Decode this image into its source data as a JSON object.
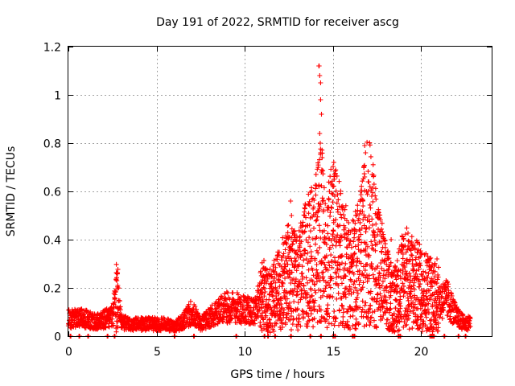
{
  "chart_data": {
    "type": "scatter",
    "title": "Day 191 of 2022, SRMTID for receiver ascg",
    "xlabel": "GPS time / hours",
    "ylabel": "SRMTID / TECUs",
    "xlim": [
      0,
      24
    ],
    "ylim": [
      0,
      1.2
    ],
    "xticks": [
      0,
      5,
      10,
      15,
      20
    ],
    "xtick_labels": [
      "0",
      "5",
      "10",
      "15",
      "20"
    ],
    "yticks": [
      0,
      0.2,
      0.4,
      0.6,
      0.8,
      1.0,
      1.2
    ],
    "ytick_labels": [
      "0",
      "0.2",
      "0.4",
      "0.6",
      "0.8",
      "1",
      "1.2"
    ],
    "grid": true,
    "marker": "+",
    "color": "#ff0000",
    "envelope": [
      {
        "x": 0.0,
        "y": 0.07
      },
      {
        "x": 0.5,
        "y": 0.08
      },
      {
        "x": 1.0,
        "y": 0.07
      },
      {
        "x": 1.5,
        "y": 0.06
      },
      {
        "x": 2.0,
        "y": 0.07
      },
      {
        "x": 2.5,
        "y": 0.08
      },
      {
        "x": 2.75,
        "y": 0.18
      },
      {
        "x": 3.0,
        "y": 0.06
      },
      {
        "x": 3.5,
        "y": 0.05
      },
      {
        "x": 4.0,
        "y": 0.05
      },
      {
        "x": 4.5,
        "y": 0.05
      },
      {
        "x": 5.0,
        "y": 0.05
      },
      {
        "x": 5.5,
        "y": 0.05
      },
      {
        "x": 6.0,
        "y": 0.04
      },
      {
        "x": 6.5,
        "y": 0.06
      },
      {
        "x": 7.0,
        "y": 0.1
      },
      {
        "x": 7.5,
        "y": 0.05
      },
      {
        "x": 8.0,
        "y": 0.08
      },
      {
        "x": 8.5,
        "y": 0.1
      },
      {
        "x": 9.0,
        "y": 0.12
      },
      {
        "x": 9.5,
        "y": 0.12
      },
      {
        "x": 10.0,
        "y": 0.11
      },
      {
        "x": 10.5,
        "y": 0.1
      },
      {
        "x": 11.0,
        "y": 0.17
      },
      {
        "x": 11.5,
        "y": 0.15
      },
      {
        "x": 12.0,
        "y": 0.2
      },
      {
        "x": 12.5,
        "y": 0.25
      },
      {
        "x": 13.0,
        "y": 0.22
      },
      {
        "x": 13.5,
        "y": 0.3
      },
      {
        "x": 14.0,
        "y": 0.35
      },
      {
        "x": 14.3,
        "y": 0.45
      },
      {
        "x": 14.6,
        "y": 0.3
      },
      {
        "x": 15.0,
        "y": 0.4
      },
      {
        "x": 15.5,
        "y": 0.32
      },
      {
        "x": 16.0,
        "y": 0.25
      },
      {
        "x": 16.5,
        "y": 0.3
      },
      {
        "x": 17.0,
        "y": 0.45
      },
      {
        "x": 17.5,
        "y": 0.32
      },
      {
        "x": 18.0,
        "y": 0.2
      },
      {
        "x": 18.5,
        "y": 0.15
      },
      {
        "x": 19.0,
        "y": 0.25
      },
      {
        "x": 19.5,
        "y": 0.22
      },
      {
        "x": 20.0,
        "y": 0.2
      },
      {
        "x": 20.5,
        "y": 0.18
      },
      {
        "x": 21.0,
        "y": 0.15
      },
      {
        "x": 21.5,
        "y": 0.15
      },
      {
        "x": 22.0,
        "y": 0.08
      },
      {
        "x": 22.5,
        "y": 0.05
      },
      {
        "x": 22.8,
        "y": 0.06
      }
    ],
    "spikes": [
      {
        "x": 12.6,
        "y": 0.56
      },
      {
        "x": 12.65,
        "y": 0.5
      },
      {
        "x": 14.2,
        "y": 1.12
      },
      {
        "x": 14.25,
        "y": 1.08
      },
      {
        "x": 14.3,
        "y": 1.05
      },
      {
        "x": 14.3,
        "y": 0.98
      },
      {
        "x": 14.35,
        "y": 0.92
      },
      {
        "x": 14.25,
        "y": 0.84
      },
      {
        "x": 14.3,
        "y": 0.76
      },
      {
        "x": 14.35,
        "y": 0.68
      },
      {
        "x": 14.2,
        "y": 0.62
      },
      {
        "x": 14.4,
        "y": 0.56
      },
      {
        "x": 14.28,
        "y": 0.8
      },
      {
        "x": 14.22,
        "y": 1.12
      },
      {
        "x": 15.0,
        "y": 0.62
      },
      {
        "x": 15.1,
        "y": 0.58
      },
      {
        "x": 14.8,
        "y": 0.6
      },
      {
        "x": 16.8,
        "y": 0.79
      },
      {
        "x": 16.85,
        "y": 0.76
      },
      {
        "x": 16.75,
        "y": 0.7
      },
      {
        "x": 16.8,
        "y": 0.66
      },
      {
        "x": 17.0,
        "y": 0.64
      },
      {
        "x": 17.1,
        "y": 0.62
      },
      {
        "x": 16.9,
        "y": 0.6
      },
      {
        "x": 17.2,
        "y": 0.58
      },
      {
        "x": 16.7,
        "y": 0.56
      },
      {
        "x": 19.0,
        "y": 0.4
      },
      {
        "x": 18.3,
        "y": 0.4
      },
      {
        "x": 20.0,
        "y": 0.34
      },
      {
        "x": 20.9,
        "y": 0.32
      },
      {
        "x": 2.75,
        "y": 0.23
      },
      {
        "x": 2.8,
        "y": 0.21
      }
    ],
    "zero_markers": [
      0.1,
      0.6,
      1.1,
      2.2,
      2.6,
      6.0,
      7.1,
      9.5,
      11.1,
      11.3,
      11.7,
      12.6,
      13.7,
      14.3,
      15.0,
      15.1,
      16.1,
      16.2,
      18.7,
      18.8,
      20.5,
      20.6,
      20.7,
      21.3,
      22.1,
      22.5
    ]
  }
}
